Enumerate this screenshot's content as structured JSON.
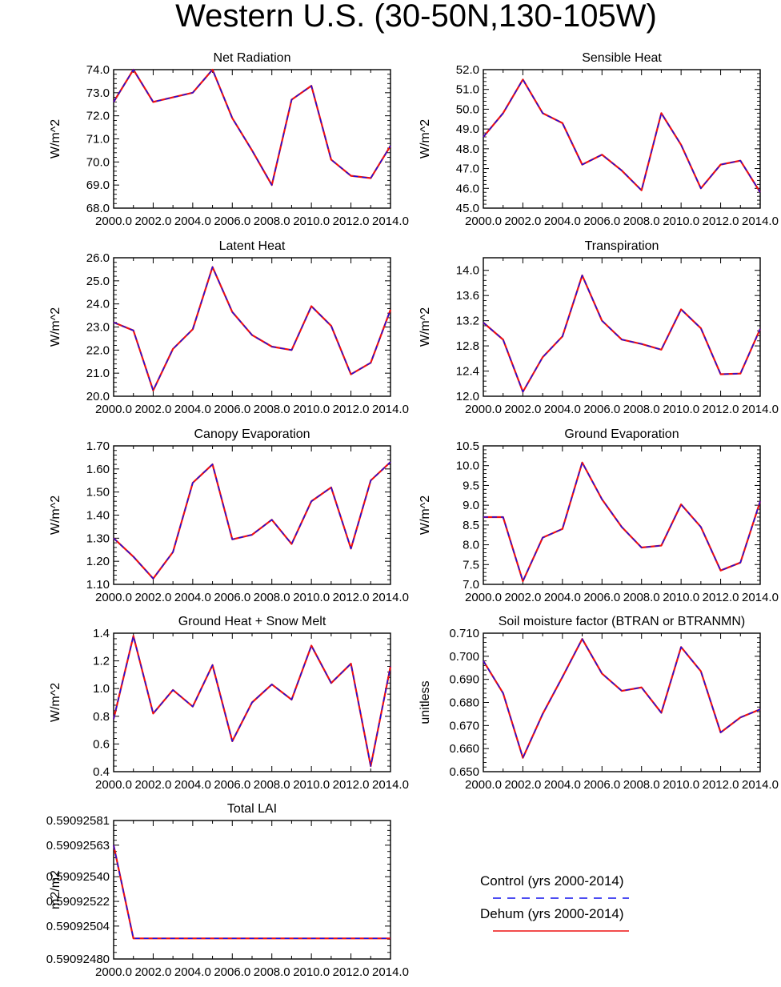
{
  "figure_title": "Western U.S. (30-50N,130-105W)",
  "colors": {
    "control": "#1010ee",
    "dehum": "#ee1010",
    "axis": "#000000"
  },
  "legend": {
    "entries": [
      {
        "label": "Control (yrs 2000-2014)",
        "style": "dashed",
        "color": "#1010ee"
      },
      {
        "label": "Dehum (yrs 2000-2014)",
        "style": "solid",
        "color": "#ee1010"
      }
    ]
  },
  "chart_data": [
    {
      "type": "line",
      "title": "Net Radiation",
      "ylabel": "W/m^2",
      "xlim": [
        2000,
        2014
      ],
      "ylim": [
        68.0,
        74.0
      ],
      "yticks": [
        "68.0",
        "69.0",
        "70.0",
        "71.0",
        "72.0",
        "73.0",
        "74.0"
      ],
      "xticks": [
        "2000.0",
        "2002.0",
        "2004.0",
        "2006.0",
        "2008.0",
        "2010.0",
        "2012.0",
        "2014.0"
      ],
      "x": [
        2000,
        2001,
        2002,
        2003,
        2004,
        2005,
        2006,
        2007,
        2008,
        2009,
        2010,
        2011,
        2012,
        2013,
        2014
      ],
      "series": [
        {
          "name": "Control (yrs 2000-2014)",
          "values": [
            72.6,
            74.0,
            72.6,
            72.8,
            73.0,
            74.0,
            71.9,
            70.5,
            69.0,
            72.7,
            73.3,
            70.1,
            69.4,
            69.3,
            70.7
          ]
        },
        {
          "name": "Dehum (yrs 2000-2014)",
          "values": [
            72.6,
            74.0,
            72.6,
            72.8,
            73.0,
            74.0,
            71.9,
            70.5,
            69.0,
            72.7,
            73.3,
            70.1,
            69.4,
            69.3,
            70.7
          ]
        }
      ]
    },
    {
      "type": "line",
      "title": "Sensible Heat",
      "ylabel": "W/m^2",
      "xlim": [
        2000,
        2014
      ],
      "ylim": [
        45.0,
        52.0
      ],
      "yticks": [
        "45.0",
        "46.0",
        "47.0",
        "48.0",
        "49.0",
        "50.0",
        "51.0",
        "52.0"
      ],
      "xticks": [
        "2000.0",
        "2002.0",
        "2004.0",
        "2006.0",
        "2008.0",
        "2010.0",
        "2012.0",
        "2014.0"
      ],
      "x": [
        2000,
        2001,
        2002,
        2003,
        2004,
        2005,
        2006,
        2007,
        2008,
        2009,
        2010,
        2011,
        2012,
        2013,
        2014
      ],
      "series": [
        {
          "name": "Control (yrs 2000-2014)",
          "values": [
            48.6,
            49.8,
            51.5,
            49.8,
            49.3,
            47.2,
            47.7,
            46.9,
            45.9,
            49.8,
            48.2,
            46.0,
            47.2,
            47.4,
            45.8
          ]
        },
        {
          "name": "Dehum (yrs 2000-2014)",
          "values": [
            48.6,
            49.8,
            51.5,
            49.8,
            49.3,
            47.2,
            47.7,
            46.9,
            45.9,
            49.8,
            48.2,
            46.0,
            47.2,
            47.4,
            45.8
          ]
        }
      ]
    },
    {
      "type": "line",
      "title": "Latent Heat",
      "ylabel": "W/m^2",
      "xlim": [
        2000,
        2014
      ],
      "ylim": [
        20.0,
        26.0
      ],
      "yticks": [
        "20.0",
        "21.0",
        "22.0",
        "23.0",
        "24.0",
        "25.0",
        "26.0"
      ],
      "xticks": [
        "2000.0",
        "2002.0",
        "2004.0",
        "2006.0",
        "2008.0",
        "2010.0",
        "2012.0",
        "2014.0"
      ],
      "x": [
        2000,
        2001,
        2002,
        2003,
        2004,
        2005,
        2006,
        2007,
        2008,
        2009,
        2010,
        2011,
        2012,
        2013,
        2014
      ],
      "series": [
        {
          "name": "Control (yrs 2000-2014)",
          "values": [
            23.2,
            22.85,
            20.25,
            22.05,
            22.9,
            25.6,
            23.65,
            22.65,
            22.15,
            22.0,
            23.9,
            23.05,
            20.95,
            21.45,
            23.75
          ]
        },
        {
          "name": "Dehum (yrs 2000-2014)",
          "values": [
            23.2,
            22.85,
            20.25,
            22.05,
            22.9,
            25.6,
            23.65,
            22.65,
            22.15,
            22.0,
            23.9,
            23.05,
            20.95,
            21.45,
            23.75
          ]
        }
      ]
    },
    {
      "type": "line",
      "title": "Transpiration",
      "ylabel": "W/m^2",
      "xlim": [
        2000,
        2014
      ],
      "ylim": [
        12.0,
        14.2
      ],
      "yticks": [
        "12.0",
        "12.4",
        "12.8",
        "13.2",
        "13.6",
        "14.0"
      ],
      "xticks": [
        "2000.0",
        "2002.0",
        "2004.0",
        "2006.0",
        "2008.0",
        "2010.0",
        "2012.0",
        "2014.0"
      ],
      "x": [
        2000,
        2001,
        2002,
        2003,
        2004,
        2005,
        2006,
        2007,
        2008,
        2009,
        2010,
        2011,
        2012,
        2013,
        2014
      ],
      "series": [
        {
          "name": "Control (yrs 2000-2014)",
          "values": [
            13.17,
            12.9,
            12.07,
            12.62,
            12.95,
            13.92,
            13.2,
            12.9,
            12.83,
            12.74,
            13.38,
            13.08,
            12.35,
            12.36,
            13.07
          ]
        },
        {
          "name": "Dehum (yrs 2000-2014)",
          "values": [
            13.17,
            12.9,
            12.07,
            12.62,
            12.95,
            13.92,
            13.2,
            12.9,
            12.83,
            12.74,
            13.38,
            13.08,
            12.35,
            12.36,
            13.07
          ]
        }
      ]
    },
    {
      "type": "line",
      "title": "Canopy Evaporation",
      "ylabel": "W/m^2",
      "xlim": [
        2000,
        2014
      ],
      "ylim": [
        1.1,
        1.7
      ],
      "yticks": [
        "1.10",
        "1.20",
        "1.30",
        "1.40",
        "1.50",
        "1.60",
        "1.70"
      ],
      "xticks": [
        "2000.0",
        "2002.0",
        "2004.0",
        "2006.0",
        "2008.0",
        "2010.0",
        "2012.0",
        "2014.0"
      ],
      "x": [
        2000,
        2001,
        2002,
        2003,
        2004,
        2005,
        2006,
        2007,
        2008,
        2009,
        2010,
        2011,
        2012,
        2013,
        2014
      ],
      "series": [
        {
          "name": "Control (yrs 2000-2014)",
          "values": [
            1.3,
            1.22,
            1.125,
            1.24,
            1.54,
            1.62,
            1.295,
            1.315,
            1.38,
            1.275,
            1.46,
            1.52,
            1.255,
            1.55,
            1.63
          ]
        },
        {
          "name": "Dehum (yrs 2000-2014)",
          "values": [
            1.3,
            1.22,
            1.125,
            1.24,
            1.54,
            1.62,
            1.295,
            1.315,
            1.38,
            1.275,
            1.46,
            1.52,
            1.255,
            1.55,
            1.63
          ]
        }
      ]
    },
    {
      "type": "line",
      "title": "Ground Evaporation",
      "ylabel": "W/m^2",
      "xlim": [
        2000,
        2014
      ],
      "ylim": [
        7.0,
        10.5
      ],
      "yticks": [
        "7.0",
        "7.5",
        "8.0",
        "8.5",
        "9.0",
        "9.5",
        "10.0",
        "10.5"
      ],
      "xticks": [
        "2000.0",
        "2002.0",
        "2004.0",
        "2006.0",
        "2008.0",
        "2010.0",
        "2012.0",
        "2014.0"
      ],
      "x": [
        2000,
        2001,
        2002,
        2003,
        2004,
        2005,
        2006,
        2007,
        2008,
        2009,
        2010,
        2011,
        2012,
        2013,
        2014
      ],
      "series": [
        {
          "name": "Control (yrs 2000-2014)",
          "values": [
            8.7,
            8.7,
            7.08,
            8.18,
            8.4,
            10.08,
            9.15,
            8.45,
            7.93,
            7.98,
            9.02,
            8.45,
            7.35,
            7.55,
            9.1
          ]
        },
        {
          "name": "Dehum (yrs 2000-2014)",
          "values": [
            8.7,
            8.7,
            7.08,
            8.18,
            8.4,
            10.08,
            9.15,
            8.45,
            7.93,
            7.98,
            9.02,
            8.45,
            7.35,
            7.55,
            9.1
          ]
        }
      ]
    },
    {
      "type": "line",
      "title": "Ground Heat + Snow Melt",
      "ylabel": "W/m^2",
      "xlim": [
        2000,
        2014
      ],
      "ylim": [
        0.4,
        1.4
      ],
      "yticks": [
        "0.4",
        "0.6",
        "0.8",
        "1.0",
        "1.2",
        "1.4"
      ],
      "xticks": [
        "2000.0",
        "2002.0",
        "2004.0",
        "2006.0",
        "2008.0",
        "2010.0",
        "2012.0",
        "2014.0"
      ],
      "x": [
        2000,
        2001,
        2002,
        2003,
        2004,
        2005,
        2006,
        2007,
        2008,
        2009,
        2010,
        2011,
        2012,
        2013,
        2014
      ],
      "series": [
        {
          "name": "Control (yrs 2000-2014)",
          "values": [
            0.78,
            1.38,
            0.82,
            0.99,
            0.87,
            1.17,
            0.62,
            0.9,
            1.03,
            0.92,
            1.31,
            1.04,
            1.18,
            0.44,
            1.16
          ]
        },
        {
          "name": "Dehum (yrs 2000-2014)",
          "values": [
            0.78,
            1.38,
            0.82,
            0.99,
            0.87,
            1.17,
            0.62,
            0.9,
            1.03,
            0.92,
            1.31,
            1.04,
            1.18,
            0.44,
            1.16
          ]
        }
      ]
    },
    {
      "type": "line",
      "title": "Soil moisture factor (BTRAN or BTRANMN)",
      "ylabel": "unitless",
      "xlim": [
        2000,
        2014
      ],
      "ylim": [
        0.65,
        0.71
      ],
      "yticks": [
        "0.650",
        "0.660",
        "0.670",
        "0.680",
        "0.690",
        "0.700",
        "0.710"
      ],
      "xticks": [
        "2000.0",
        "2002.0",
        "2004.0",
        "2006.0",
        "2008.0",
        "2010.0",
        "2012.0",
        "2014.0"
      ],
      "x": [
        2000,
        2001,
        2002,
        2003,
        2004,
        2005,
        2006,
        2007,
        2008,
        2009,
        2010,
        2011,
        2012,
        2013,
        2014
      ],
      "series": [
        {
          "name": "Control (yrs 2000-2014)",
          "values": [
            0.698,
            0.684,
            0.656,
            0.675,
            0.691,
            0.7075,
            0.6925,
            0.685,
            0.6865,
            0.6755,
            0.704,
            0.6935,
            0.667,
            0.6735,
            0.677
          ]
        },
        {
          "name": "Dehum (yrs 2000-2014)",
          "values": [
            0.698,
            0.684,
            0.656,
            0.675,
            0.691,
            0.7075,
            0.6925,
            0.685,
            0.6865,
            0.6755,
            0.704,
            0.6935,
            0.667,
            0.6735,
            0.677
          ]
        }
      ]
    },
    {
      "type": "line",
      "title": "Total LAI",
      "ylabel": "m2/m2",
      "xlim": [
        2000,
        2014
      ],
      "ylim": [
        0.5909248,
        0.59092581
      ],
      "yticks": [
        "0.59092480",
        "0.59092504",
        "0.59092522",
        "0.59092540",
        "0.59092563",
        "0.59092581"
      ],
      "ytick_values": [
        0.5909248,
        0.59092504,
        0.59092522,
        0.5909254,
        0.59092563,
        0.59092581
      ],
      "xticks": [
        "2000.0",
        "2002.0",
        "2004.0",
        "2006.0",
        "2008.0",
        "2010.0",
        "2012.0",
        "2014.0"
      ],
      "x": [
        2000,
        2001,
        2002,
        2003,
        2004,
        2005,
        2006,
        2007,
        2008,
        2009,
        2010,
        2011,
        2012,
        2013,
        2014
      ],
      "series": [
        {
          "name": "Control (yrs 2000-2014)",
          "values": [
            0.59092563,
            0.59092495,
            0.59092495,
            0.59092495,
            0.59092495,
            0.59092495,
            0.59092495,
            0.59092495,
            0.59092495,
            0.59092495,
            0.59092495,
            0.59092495,
            0.59092495,
            0.59092495,
            0.59092495
          ]
        },
        {
          "name": "Dehum (yrs 2000-2014)",
          "values": [
            0.59092563,
            0.59092495,
            0.59092495,
            0.59092495,
            0.59092495,
            0.59092495,
            0.59092495,
            0.59092495,
            0.59092495,
            0.59092495,
            0.59092495,
            0.59092495,
            0.59092495,
            0.59092495,
            0.59092495
          ]
        }
      ]
    }
  ]
}
